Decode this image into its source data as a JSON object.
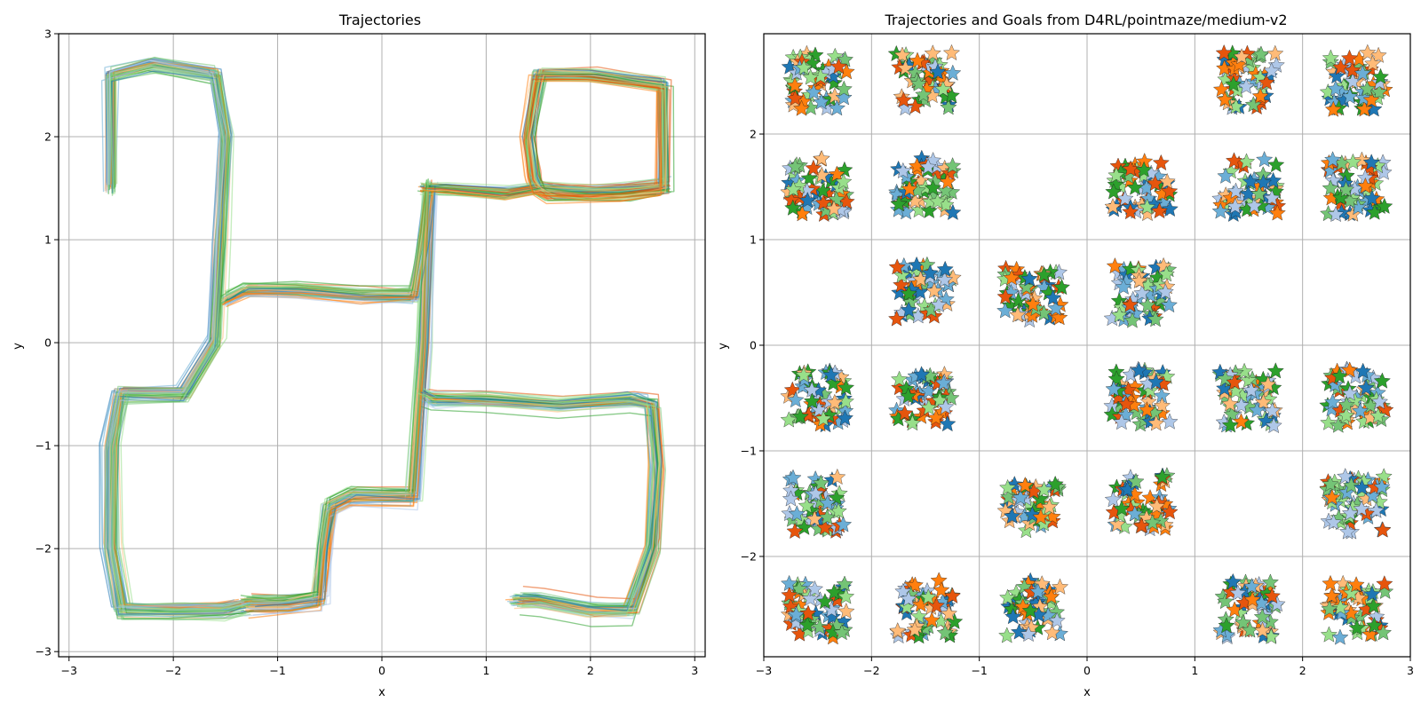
{
  "colors": {
    "blue": "#1f77b4",
    "orange": "#ff7f0e",
    "green": "#2ca02c",
    "light_blue": "#aec7e8",
    "light_orange": "#ffbb78",
    "light_green": "#98df8a",
    "dark_orange": "#e6550d",
    "mid_blue": "#6baed6",
    "mid_green": "#74c476"
  },
  "chart_data": [
    {
      "type": "line",
      "title": "Trajectories",
      "xlabel": "x",
      "ylabel": "y",
      "xlim": [
        -3.1,
        3.1
      ],
      "ylim": [
        -3.05,
        3.0
      ],
      "xticks": [
        -3,
        -2,
        -1,
        0,
        1,
        2,
        3
      ],
      "yticks": [
        -3,
        -2,
        -1,
        0,
        1,
        2,
        3
      ],
      "xtick_labels": [
        "−3",
        "−2",
        "−1",
        "0",
        "1",
        "2",
        "3"
      ],
      "ytick_labels": [
        "−3",
        "−2",
        "−1",
        "0",
        "1",
        "2",
        "3"
      ],
      "grid": true,
      "series": [
        {
          "x": [
            -2.6,
            -2.5,
            -2.4,
            -2.2,
            -2.0,
            -1.8,
            -1.6,
            -1.5,
            -1.5,
            -1.5,
            -1.6,
            -2.0,
            -2.5,
            -2.6,
            -2.5,
            -2.2,
            -1.8,
            -1.5
          ]
        },
        {
          "y": [
            2.1,
            2.5,
            2.6,
            2.6,
            2.55,
            2.5,
            2.3,
            2.0,
            1.5,
            0.9,
            0.5,
            0.45,
            0.45,
            0.5,
            0.5,
            0.45,
            0.4,
            0.4
          ]
        }
      ],
      "paths": [
        {
          "name": "",
          "x": [
            -2.6,
            -2.6,
            -2.2,
            -1.6,
            -1.5,
            -1.55,
            -1.6,
            -1.9,
            -2.5,
            -2.6,
            -2.6,
            -2.5,
            -2.0,
            -1.5,
            -1.3
          ],
          "y": [
            1.5,
            2.6,
            2.7,
            2.6,
            2.0,
            1.0,
            0.0,
            -0.5,
            -0.5,
            -1.0,
            -2.0,
            -2.6,
            -2.6,
            -2.6,
            -2.55
          ]
        },
        {
          "name": "",
          "x": [
            -1.5,
            -1.3,
            -0.8,
            -0.2,
            0.3,
            0.4,
            0.45,
            0.4,
            0.3,
            -0.3,
            -0.5,
            -0.55,
            -0.6,
            -0.9,
            -1.3
          ],
          "y": [
            0.4,
            0.5,
            0.5,
            0.45,
            0.45,
            1.0,
            1.5,
            0.0,
            -1.5,
            -1.5,
            -1.6,
            -2.0,
            -2.5,
            -2.55,
            -2.55
          ]
        },
        {
          "name": "",
          "x": [
            0.4,
            0.6,
            1.2,
            1.5,
            2.0,
            2.7,
            2.7,
            2.0,
            1.5,
            1.4,
            1.45,
            1.5,
            1.6,
            2.3,
            2.7
          ],
          "y": [
            1.5,
            1.5,
            1.45,
            1.5,
            1.45,
            1.5,
            2.5,
            2.6,
            2.6,
            2.0,
            1.6,
            1.5,
            1.45,
            1.45,
            1.5
          ]
        },
        {
          "name": "",
          "x": [
            0.4,
            0.5,
            1.0,
            1.7,
            2.4,
            2.6,
            2.65,
            2.6,
            2.4,
            2.0,
            1.5,
            1.3
          ],
          "y": [
            -0.5,
            -0.55,
            -0.55,
            -0.6,
            -0.55,
            -0.6,
            -1.2,
            -2.0,
            -2.6,
            -2.6,
            -2.5,
            -2.5
          ]
        }
      ]
    },
    {
      "type": "scatter",
      "title": "Trajectories and Goals from D4RL/pointmaze/medium-v2",
      "xlabel": "x",
      "ylabel": "y",
      "xlim": [
        -3.0,
        3.0
      ],
      "ylim": [
        -2.95,
        2.95
      ],
      "xticks": [
        -3,
        -2,
        -1,
        0,
        1,
        2,
        3
      ],
      "yticks": [
        -2,
        -1,
        0,
        1,
        2
      ],
      "xtick_labels": [
        "−3",
        "−2",
        "−1",
        "0",
        "1",
        "2",
        "3"
      ],
      "ytick_labels": [
        "−2",
        "−1",
        "0",
        "1",
        "2"
      ],
      "grid": true,
      "marker": "star",
      "goal_cells": [
        [
          -2.5,
          2.5
        ],
        [
          -1.5,
          2.5
        ],
        [
          1.5,
          2.5
        ],
        [
          2.5,
          2.5
        ],
        [
          -2.5,
          1.5
        ],
        [
          -1.5,
          1.5
        ],
        [
          0.5,
          1.5
        ],
        [
          1.5,
          1.5
        ],
        [
          2.5,
          1.5
        ],
        [
          -1.5,
          0.5
        ],
        [
          -0.5,
          0.5
        ],
        [
          0.5,
          0.5
        ],
        [
          -2.5,
          -0.5
        ],
        [
          -1.5,
          -0.5
        ],
        [
          0.5,
          -0.5
        ],
        [
          1.5,
          -0.5
        ],
        [
          2.5,
          -0.5
        ],
        [
          -2.5,
          -1.5
        ],
        [
          -0.5,
          -1.5
        ],
        [
          0.5,
          -1.5
        ],
        [
          2.5,
          -1.5
        ],
        [
          -2.5,
          -2.5
        ],
        [
          -1.5,
          -2.5
        ],
        [
          -0.5,
          -2.5
        ],
        [
          1.5,
          -2.5
        ],
        [
          2.5,
          -2.5
        ]
      ],
      "cell_half_width": 0.27
    }
  ]
}
